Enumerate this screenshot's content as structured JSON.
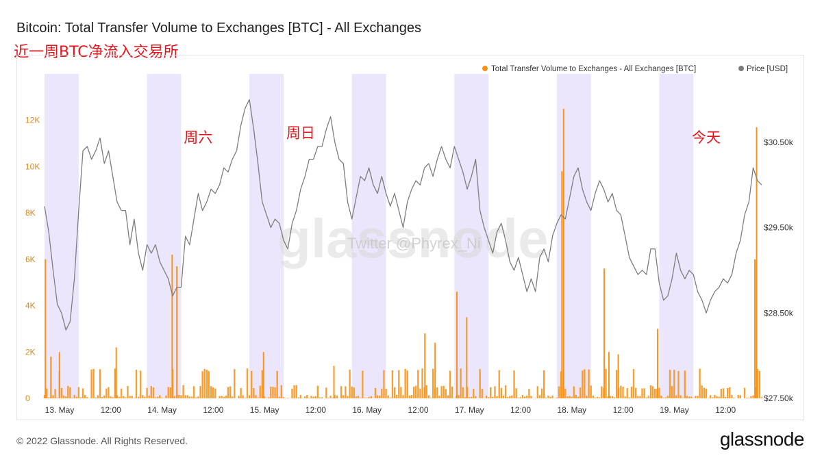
{
  "title": "Bitcoin: Total Transfer Volume to Exchanges [BTC] - All Exchanges",
  "subtitle": "近一周BTC净流入交易所",
  "footer": {
    "copyright": "© 2022 Glassnode. All Rights Reserved.",
    "logo": "glassnode"
  },
  "watermark": {
    "logo": "glassnode",
    "credit": "Twitter @Phyrex_Ni"
  },
  "colors": {
    "volume": "#f7931a",
    "price": "#7d7d7d",
    "shade": "#ece6fc",
    "annotation": "#e8141c"
  },
  "chart_data": {
    "type": "bar+line",
    "legend_position": "top-right",
    "grid": false,
    "x_range": [
      0,
      168
    ],
    "x_unit": "hours since 13 May 00:00",
    "x_ticks": [
      {
        "x": 0,
        "label": "13. May"
      },
      {
        "x": 12,
        "label": "12:00"
      },
      {
        "x": 24,
        "label": "14. May"
      },
      {
        "x": 36,
        "label": "12:00"
      },
      {
        "x": 48,
        "label": "15. May"
      },
      {
        "x": 60,
        "label": "12:00"
      },
      {
        "x": 72,
        "label": "16. May"
      },
      {
        "x": 84,
        "label": "12:00"
      },
      {
        "x": 96,
        "label": "17. May"
      },
      {
        "x": 108,
        "label": "12:00"
      },
      {
        "x": 120,
        "label": "18. May"
      },
      {
        "x": 132,
        "label": "12:00"
      },
      {
        "x": 144,
        "label": "19. May"
      },
      {
        "x": 156,
        "label": "12:00"
      }
    ],
    "shaded_bands": [
      [
        0,
        8
      ],
      [
        24,
        32
      ],
      [
        48,
        56
      ],
      [
        72,
        80
      ],
      [
        96,
        104
      ],
      [
        120,
        128
      ],
      [
        144,
        152
      ]
    ],
    "y_left": {
      "range": [
        0,
        14000
      ],
      "ticks": [
        0,
        2000,
        4000,
        6000,
        8000,
        10000,
        12000
      ],
      "tick_labels": [
        "0",
        "2K",
        "4K",
        "6K",
        "8K",
        "10K",
        "12K"
      ]
    },
    "y_right": {
      "range": [
        27500,
        31300
      ],
      "ticks": [
        27500,
        28500,
        29500,
        30500
      ],
      "tick_labels": [
        "$27.50k",
        "$28.50k",
        "$29.50k",
        "$30.50k"
      ]
    },
    "series": [
      {
        "name": "Total Transfer Volume to Exchanges - All Exchanges [BTC]",
        "axis": "left",
        "kind": "bar",
        "spikes": [
          {
            "x": 0.2,
            "y": 6000
          },
          {
            "x": 1.5,
            "y": 1800
          },
          {
            "x": 3.5,
            "y": 2000
          },
          {
            "x": 16.8,
            "y": 2200
          },
          {
            "x": 29.9,
            "y": 6200
          },
          {
            "x": 31.0,
            "y": 5700
          },
          {
            "x": 51.3,
            "y": 2000
          },
          {
            "x": 67.8,
            "y": 1400
          },
          {
            "x": 89.1,
            "y": 2800
          },
          {
            "x": 91.5,
            "y": 2400
          },
          {
            "x": 96.6,
            "y": 4600
          },
          {
            "x": 98.9,
            "y": 3500
          },
          {
            "x": 121.6,
            "y": 12500
          },
          {
            "x": 121.2,
            "y": 9800
          },
          {
            "x": 131.1,
            "y": 5600
          },
          {
            "x": 132.2,
            "y": 2000
          },
          {
            "x": 134.4,
            "y": 1900
          },
          {
            "x": 143.6,
            "y": 3000
          },
          {
            "x": 166.8,
            "y": 11700
          },
          {
            "x": 166.4,
            "y": 6000
          }
        ]
      },
      {
        "name": "Price [USD]",
        "axis": "right",
        "kind": "line",
        "points": [
          [
            0,
            29750
          ],
          [
            1,
            29450
          ],
          [
            2,
            29000
          ],
          [
            3,
            28600
          ],
          [
            4,
            28500
          ],
          [
            5,
            28300
          ],
          [
            6,
            28400
          ],
          [
            7,
            28900
          ],
          [
            8,
            29700
          ],
          [
            9,
            30400
          ],
          [
            10,
            30450
          ],
          [
            11,
            30300
          ],
          [
            12,
            30400
          ],
          [
            13,
            30550
          ],
          [
            14,
            30250
          ],
          [
            15,
            30400
          ],
          [
            16,
            30100
          ],
          [
            17,
            29800
          ],
          [
            18,
            29700
          ],
          [
            19,
            29700
          ],
          [
            20,
            29300
          ],
          [
            21,
            29600
          ],
          [
            22,
            29200
          ],
          [
            23,
            29000
          ],
          [
            24,
            29300
          ],
          [
            25,
            29200
          ],
          [
            26,
            29300
          ],
          [
            27,
            29100
          ],
          [
            28,
            29000
          ],
          [
            29,
            28900
          ],
          [
            30,
            28700
          ],
          [
            31,
            28800
          ],
          [
            32,
            28800
          ],
          [
            33,
            29400
          ],
          [
            34,
            29300
          ],
          [
            35,
            29600
          ],
          [
            36,
            29900
          ],
          [
            37,
            29700
          ],
          [
            38,
            29800
          ],
          [
            39,
            29950
          ],
          [
            40,
            29900
          ],
          [
            41,
            30000
          ],
          [
            42,
            30200
          ],
          [
            43,
            30150
          ],
          [
            44,
            30300
          ],
          [
            45,
            30400
          ],
          [
            46,
            30700
          ],
          [
            47,
            30900
          ],
          [
            48,
            31000
          ],
          [
            49,
            30650
          ],
          [
            50,
            30250
          ],
          [
            51,
            29800
          ],
          [
            52,
            29650
          ],
          [
            53,
            29500
          ],
          [
            54,
            29600
          ],
          [
            55,
            29550
          ],
          [
            56,
            29350
          ],
          [
            57,
            29250
          ],
          [
            58,
            29550
          ],
          [
            59,
            29700
          ],
          [
            60,
            29950
          ],
          [
            61,
            30100
          ],
          [
            62,
            30300
          ],
          [
            63,
            30300
          ],
          [
            64,
            30450
          ],
          [
            65,
            30450
          ],
          [
            66,
            30650
          ],
          [
            67,
            30800
          ],
          [
            68,
            30500
          ],
          [
            69,
            30300
          ],
          [
            70,
            30250
          ],
          [
            71,
            29800
          ],
          [
            72,
            29600
          ],
          [
            73,
            29850
          ],
          [
            74,
            30100
          ],
          [
            75,
            30050
          ],
          [
            76,
            30200
          ],
          [
            77,
            30000
          ],
          [
            78,
            29900
          ],
          [
            79,
            30100
          ],
          [
            80,
            29900
          ],
          [
            81,
            29750
          ],
          [
            82,
            29900
          ],
          [
            83,
            29700
          ],
          [
            84,
            29500
          ],
          [
            85,
            29800
          ],
          [
            86,
            29950
          ],
          [
            87,
            30050
          ],
          [
            88,
            30000
          ],
          [
            89,
            30200
          ],
          [
            90,
            30250
          ],
          [
            91,
            30100
          ],
          [
            92,
            30300
          ],
          [
            93,
            30450
          ],
          [
            94,
            30300
          ],
          [
            95,
            30200
          ],
          [
            96,
            30450
          ],
          [
            97,
            30300
          ],
          [
            98,
            30150
          ],
          [
            99,
            29950
          ],
          [
            100,
            30100
          ],
          [
            101,
            30300
          ],
          [
            102,
            29700
          ],
          [
            103,
            29500
          ],
          [
            104,
            29350
          ],
          [
            105,
            29200
          ],
          [
            106,
            29450
          ],
          [
            107,
            29550
          ],
          [
            108,
            29350
          ],
          [
            109,
            29100
          ],
          [
            110,
            29000
          ],
          [
            111,
            29150
          ],
          [
            112,
            28950
          ],
          [
            113,
            28750
          ],
          [
            114,
            28900
          ],
          [
            115,
            28750
          ],
          [
            116,
            29150
          ],
          [
            117,
            29250
          ],
          [
            118,
            29100
          ],
          [
            119,
            29400
          ],
          [
            120,
            29550
          ],
          [
            121,
            29650
          ],
          [
            122,
            29600
          ],
          [
            123,
            29850
          ],
          [
            124,
            30100
          ],
          [
            125,
            30200
          ],
          [
            126,
            29950
          ],
          [
            127,
            29800
          ],
          [
            128,
            29700
          ],
          [
            129,
            29900
          ],
          [
            130,
            30050
          ],
          [
            131,
            29950
          ],
          [
            132,
            29800
          ],
          [
            133,
            29900
          ],
          [
            134,
            29700
          ],
          [
            135,
            29650
          ],
          [
            136,
            29400
          ],
          [
            137,
            29150
          ],
          [
            138,
            29050
          ],
          [
            139,
            28950
          ],
          [
            140,
            29000
          ],
          [
            141,
            28950
          ],
          [
            142,
            29250
          ],
          [
            143,
            29250
          ],
          [
            144,
            28850
          ],
          [
            145,
            28650
          ],
          [
            146,
            28700
          ],
          [
            147,
            28900
          ],
          [
            148,
            29200
          ],
          [
            149,
            29000
          ],
          [
            150,
            28900
          ],
          [
            151,
            29000
          ],
          [
            152,
            28950
          ],
          [
            153,
            28750
          ],
          [
            154,
            28650
          ],
          [
            155,
            28500
          ],
          [
            156,
            28650
          ],
          [
            157,
            28750
          ],
          [
            158,
            28800
          ],
          [
            159,
            28900
          ],
          [
            160,
            28850
          ],
          [
            161,
            28950
          ],
          [
            162,
            29200
          ],
          [
            163,
            29350
          ],
          [
            164,
            29650
          ],
          [
            165,
            29800
          ],
          [
            166,
            30200
          ],
          [
            167,
            30050
          ],
          [
            168,
            30000
          ]
        ]
      }
    ],
    "annotations": [
      {
        "text": "周六",
        "x": 36,
        "y_right": 30500
      },
      {
        "text": "周日",
        "x": 60,
        "y_right": 30550
      },
      {
        "text": "今天",
        "x": 155,
        "y_right": 30500
      }
    ]
  }
}
